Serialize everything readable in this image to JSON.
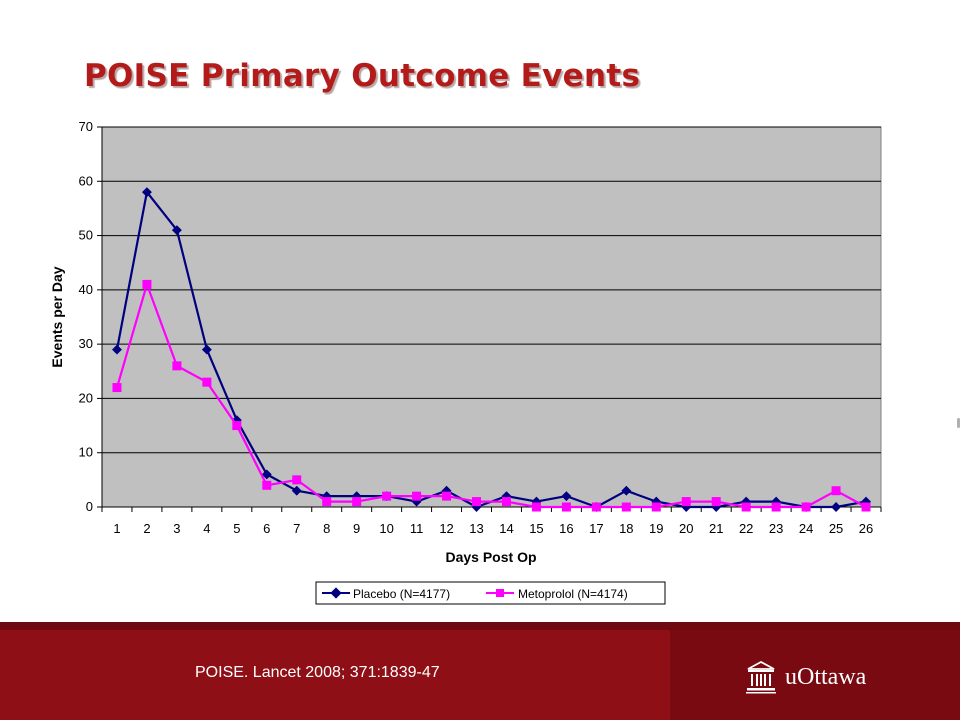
{
  "slide": {
    "title": "POISE Primary Outcome Events",
    "citation": "POISE. Lancet 2008; 371:1839-47",
    "logo_text": "uOttawa"
  },
  "colors": {
    "title": "#b31b1b",
    "plot_background": "#c0c0c0",
    "placebo": "#000080",
    "metoprolol": "#ff00ff",
    "footer": "#8e0f16"
  },
  "chart_data": {
    "type": "line",
    "title": "",
    "xlabel": "Days Post Op",
    "ylabel": "Events per Day",
    "ylim": [
      0,
      70
    ],
    "yticks": [
      0,
      10,
      20,
      30,
      40,
      50,
      60,
      70
    ],
    "grid": true,
    "legend_position": "bottom",
    "categories": [
      "1",
      "2",
      "3",
      "4",
      "5",
      "6",
      "7",
      "8",
      "9",
      "10",
      "11",
      "12",
      "13",
      "14",
      "15",
      "16",
      "17",
      "18",
      "19",
      "20",
      "21",
      "22",
      "23",
      "24",
      "25",
      "26"
    ],
    "series": [
      {
        "name": "Placebo (N=4177)",
        "marker": "diamond",
        "color": "#000080",
        "values": [
          29,
          58,
          51,
          29,
          16,
          6,
          3,
          2,
          2,
          2,
          1,
          3,
          0,
          2,
          1,
          2,
          0,
          3,
          1,
          0,
          0,
          1,
          1,
          0,
          0,
          1
        ]
      },
      {
        "name": "Metoprolol (N=4174)",
        "marker": "square",
        "color": "#ff00ff",
        "values": [
          22,
          41,
          26,
          23,
          15,
          4,
          5,
          1,
          1,
          2,
          2,
          2,
          1,
          1,
          0,
          0,
          0,
          0,
          0,
          1,
          1,
          0,
          0,
          0,
          3,
          0
        ]
      }
    ]
  }
}
